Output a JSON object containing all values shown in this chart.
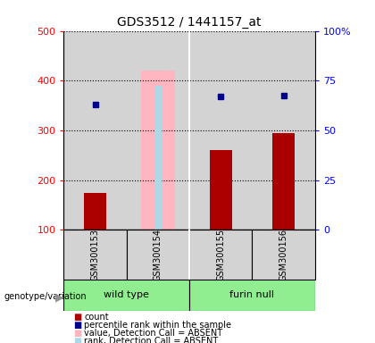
{
  "title": "GDS3512 / 1441157_at",
  "samples": [
    "GSM300153",
    "GSM300154",
    "GSM300155",
    "GSM300156"
  ],
  "count_values": [
    175,
    null,
    260,
    295
  ],
  "count_color": "#AA0000",
  "rank_values": [
    352,
    null,
    368,
    370
  ],
  "rank_color": "#00008B",
  "absent_value_bar": [
    null,
    420,
    null,
    null
  ],
  "absent_rank_bar": [
    null,
    390,
    null,
    null
  ],
  "absent_value_color": "#FFB6C1",
  "absent_rank_color": "#ADD8E6",
  "ylim_left": [
    100,
    500
  ],
  "ylim_right": [
    0,
    100
  ],
  "yticks_left": [
    100,
    200,
    300,
    400,
    500
  ],
  "yticks_right": [
    0,
    25,
    50,
    75,
    100
  ],
  "ytick_labels_right": [
    "0",
    "25",
    "50",
    "75",
    "100%"
  ],
  "bar_width": 0.35,
  "absent_bar_width": 0.55,
  "bg_color": "#D3D3D3",
  "green_color": "#90EE90",
  "legend_labels": [
    "count",
    "percentile rank within the sample",
    "value, Detection Call = ABSENT",
    "rank, Detection Call = ABSENT"
  ],
  "legend_colors": [
    "#AA0000",
    "#00008B",
    "#FFB6C1",
    "#ADD8E6"
  ],
  "genotype_label": "genotype/variation",
  "wild_type_label": "wild type",
  "furin_null_label": "furin null"
}
